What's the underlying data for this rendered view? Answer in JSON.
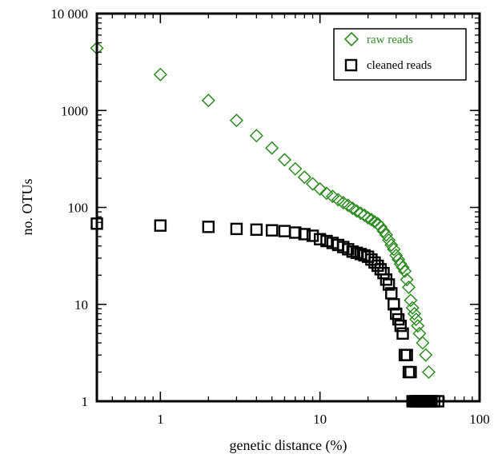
{
  "chart_data": {
    "type": "scatter",
    "xlabel": "genetic distance (%)",
    "ylabel": "no. OTUs",
    "xscale": "log",
    "yscale": "log",
    "xlim": [
      0.4,
      100
    ],
    "ylim": [
      1,
      10000
    ],
    "xticks": [
      {
        "value": 1,
        "label": "1"
      },
      {
        "value": 10,
        "label": "10"
      },
      {
        "value": 100,
        "label": "100"
      }
    ],
    "yticks": [
      {
        "value": 1,
        "label": "1"
      },
      {
        "value": 10,
        "label": "10"
      },
      {
        "value": 100,
        "label": "100"
      },
      {
        "value": 1000,
        "label": "1000"
      },
      {
        "value": 10000,
        "label": "10 000"
      }
    ],
    "grid": false,
    "legend": "top-right",
    "series": [
      {
        "name": "raw reads",
        "marker": "diamond",
        "color": "#2e8b22",
        "points": [
          [
            0.4,
            4400
          ],
          [
            1,
            2350
          ],
          [
            2,
            1270
          ],
          [
            3,
            790
          ],
          [
            4,
            550
          ],
          [
            5,
            410
          ],
          [
            6,
            310
          ],
          [
            7,
            250
          ],
          [
            8,
            205
          ],
          [
            9,
            175
          ],
          [
            10,
            155
          ],
          [
            11,
            140
          ],
          [
            12,
            130
          ],
          [
            13,
            120
          ],
          [
            14,
            112
          ],
          [
            15,
            105
          ],
          [
            16,
            98
          ],
          [
            17,
            92
          ],
          [
            18,
            87
          ],
          [
            19,
            83
          ],
          [
            20,
            78
          ],
          [
            21,
            75
          ],
          [
            22,
            71
          ],
          [
            23,
            68
          ],
          [
            24,
            63
          ],
          [
            25,
            57
          ],
          [
            26,
            52
          ],
          [
            27,
            46
          ],
          [
            28,
            41
          ],
          [
            29,
            37
          ],
          [
            30,
            32
          ],
          [
            31,
            29
          ],
          [
            32,
            26
          ],
          [
            33,
            24
          ],
          [
            34,
            22
          ],
          [
            35,
            18
          ],
          [
            36,
            15
          ],
          [
            37,
            11
          ],
          [
            38,
            9.2
          ],
          [
            39,
            8
          ],
          [
            40,
            7
          ],
          [
            41,
            6
          ],
          [
            42,
            5
          ],
          [
            44,
            4
          ],
          [
            46,
            3
          ],
          [
            48,
            2
          ]
        ]
      },
      {
        "name": "cleaned reads",
        "marker": "square",
        "color": "#000000",
        "points": [
          [
            0.4,
            68
          ],
          [
            1,
            65
          ],
          [
            2,
            63
          ],
          [
            3,
            60
          ],
          [
            4,
            59
          ],
          [
            5,
            58
          ],
          [
            6,
            57
          ],
          [
            7,
            55
          ],
          [
            8,
            53
          ],
          [
            9,
            51
          ],
          [
            10,
            47
          ],
          [
            11,
            45
          ],
          [
            12,
            43
          ],
          [
            13,
            41
          ],
          [
            14,
            39
          ],
          [
            15,
            37
          ],
          [
            16,
            35
          ],
          [
            17,
            34
          ],
          [
            18,
            33
          ],
          [
            19,
            32
          ],
          [
            20,
            31
          ],
          [
            21,
            29
          ],
          [
            22,
            27
          ],
          [
            23,
            25
          ],
          [
            24,
            23
          ],
          [
            25,
            21
          ],
          [
            26,
            18
          ],
          [
            27,
            16
          ],
          [
            28,
            13
          ],
          [
            29,
            10
          ],
          [
            30,
            8
          ],
          [
            31,
            7
          ],
          [
            32,
            6
          ],
          [
            33,
            5
          ],
          [
            34,
            3
          ],
          [
            35,
            3
          ],
          [
            36,
            2
          ],
          [
            37,
            2
          ],
          [
            38,
            1
          ],
          [
            39,
            1
          ],
          [
            40,
            1
          ],
          [
            41,
            1
          ],
          [
            42,
            1
          ],
          [
            43,
            1
          ],
          [
            44,
            1
          ],
          [
            45,
            1
          ],
          [
            46,
            1
          ],
          [
            47,
            1
          ],
          [
            48,
            1
          ],
          [
            49,
            1
          ],
          [
            50,
            1
          ],
          [
            52,
            1
          ],
          [
            55,
            1
          ]
        ]
      }
    ]
  }
}
